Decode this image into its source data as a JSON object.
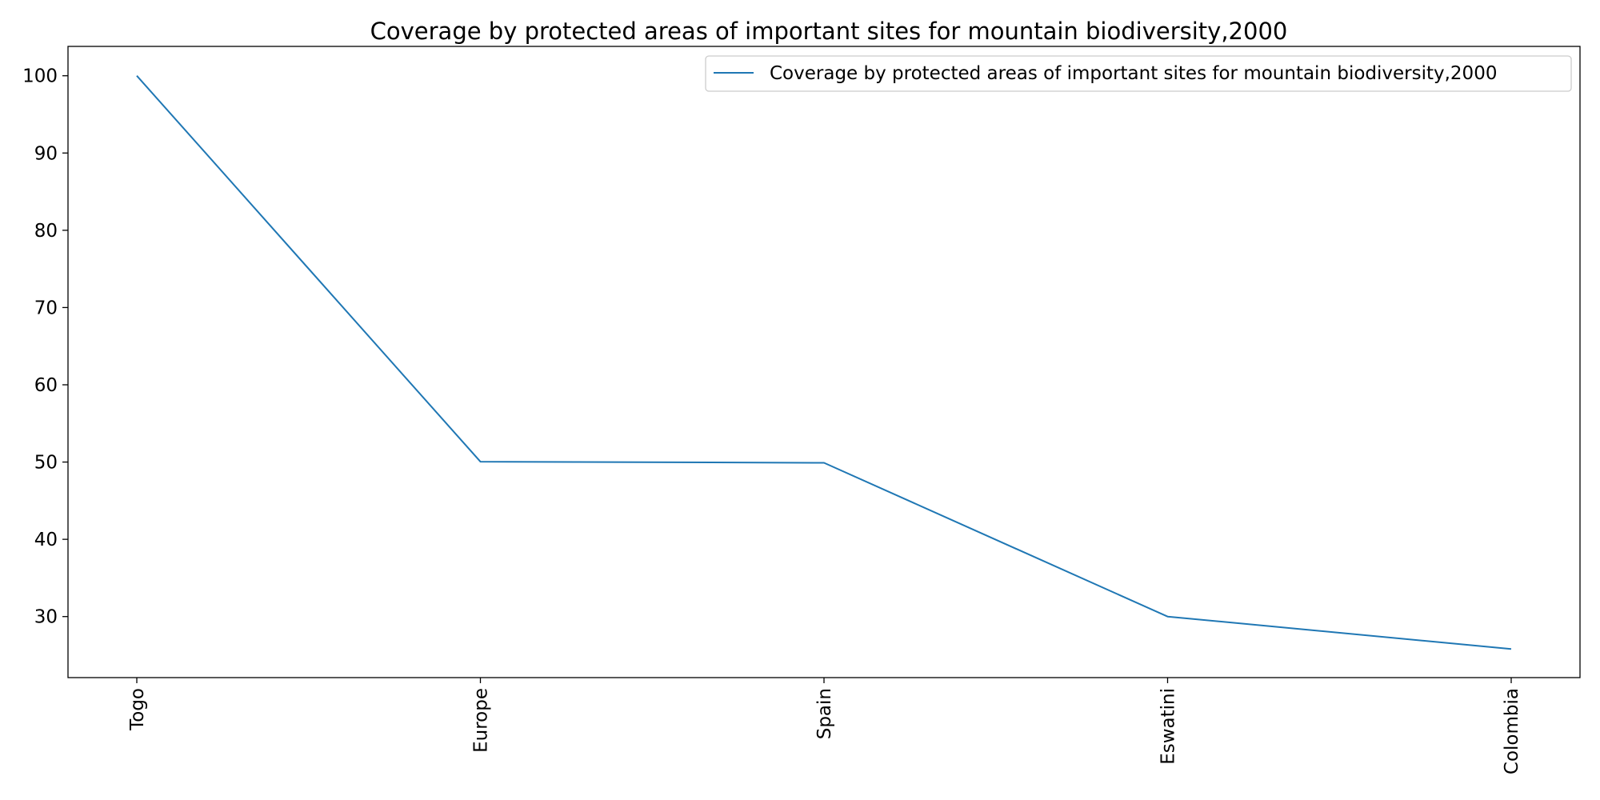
{
  "chart_data": {
    "type": "line",
    "title": "Coverage by protected areas of important sites for mountain biodiversity,2000",
    "xlabel": "",
    "ylabel": "",
    "categories": [
      "Togo",
      "Europe",
      "Spain",
      "Eswatini",
      "Colombia"
    ],
    "series": [
      {
        "name": "Coverage by protected areas of important sites for mountain biodiversity,2000",
        "values": [
          100,
          50.05,
          49.9,
          30.0,
          25.8
        ],
        "color": "#1f77b4"
      }
    ],
    "ylim": [
      22.1,
      103.8
    ],
    "yticks": [
      30,
      40,
      50,
      60,
      70,
      80,
      90,
      100
    ],
    "grid": false,
    "legend_position": "top-right",
    "x_tick_rotation": "vertical"
  }
}
